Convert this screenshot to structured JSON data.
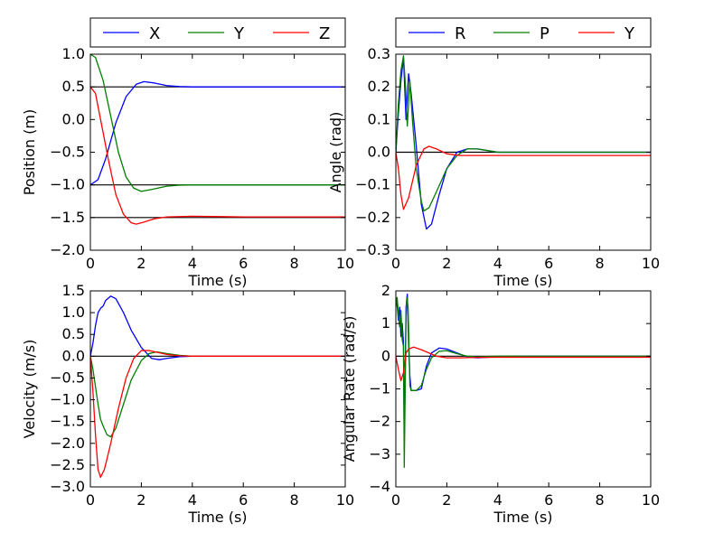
{
  "chart_data": [
    {
      "type": "line",
      "title": "",
      "xlabel": "Time (s)",
      "ylabel": "Position (m)",
      "xlim": [
        0,
        10
      ],
      "ylim": [
        -2.0,
        1.0
      ],
      "x_ticks": [
        "0",
        "2",
        "4",
        "6",
        "8",
        "10"
      ],
      "y_ticks": [
        "1.0",
        "0.5",
        "0.0",
        "−0.5",
        "−1.0",
        "−1.5",
        "−2.0"
      ],
      "reference_lines": [
        0.5,
        -1.0,
        -1.5
      ],
      "legend": {
        "placement": "above",
        "entries": [
          "X",
          "Y",
          "Z"
        ]
      },
      "series": [
        {
          "name": "X",
          "color": "#0000ff",
          "points": [
            [
              0,
              -1.0
            ],
            [
              0.3,
              -0.92
            ],
            [
              0.6,
              -0.6
            ],
            [
              1.0,
              -0.05
            ],
            [
              1.4,
              0.35
            ],
            [
              1.8,
              0.54
            ],
            [
              2.1,
              0.58
            ],
            [
              2.5,
              0.56
            ],
            [
              3.0,
              0.52
            ],
            [
              3.5,
              0.505
            ],
            [
              4.0,
              0.5
            ],
            [
              10,
              0.5
            ]
          ]
        },
        {
          "name": "Y",
          "color": "#007f00",
          "points": [
            [
              0,
              1.0
            ],
            [
              0.2,
              0.95
            ],
            [
              0.5,
              0.6
            ],
            [
              0.8,
              0.05
            ],
            [
              1.1,
              -0.5
            ],
            [
              1.4,
              -0.88
            ],
            [
              1.7,
              -1.05
            ],
            [
              2.0,
              -1.1
            ],
            [
              2.4,
              -1.07
            ],
            [
              3.0,
              -1.02
            ],
            [
              3.5,
              -1.005
            ],
            [
              4.0,
              -1.0
            ],
            [
              10,
              -1.0
            ]
          ]
        },
        {
          "name": "Z",
          "color": "#ff0000",
          "points": [
            [
              0,
              0.5
            ],
            [
              0.2,
              0.4
            ],
            [
              0.4,
              0.0
            ],
            [
              0.7,
              -0.6
            ],
            [
              1.0,
              -1.15
            ],
            [
              1.3,
              -1.45
            ],
            [
              1.6,
              -1.58
            ],
            [
              1.8,
              -1.6
            ],
            [
              2.1,
              -1.57
            ],
            [
              2.5,
              -1.52
            ],
            [
              3.0,
              -1.49
            ],
            [
              4.0,
              -1.48
            ],
            [
              6.0,
              -1.49
            ],
            [
              10,
              -1.49
            ]
          ]
        }
      ]
    },
    {
      "type": "line",
      "title": "",
      "xlabel": "Time (s)",
      "ylabel": "Angle (rad)",
      "xlim": [
        0,
        10
      ],
      "ylim": [
        -0.3,
        0.3
      ],
      "x_ticks": [
        "0",
        "2",
        "4",
        "6",
        "8",
        "10"
      ],
      "y_ticks": [
        "0.3",
        "0.2",
        "0.1",
        "0.0",
        "−0.1",
        "−0.2",
        "−0.3"
      ],
      "reference_lines": [
        0.0
      ],
      "legend": {
        "placement": "above",
        "entries": [
          "R",
          "P",
          "Y"
        ]
      },
      "series": [
        {
          "name": "R",
          "color": "#0000ff",
          "points": [
            [
              0,
              0
            ],
            [
              0.1,
              0.12
            ],
            [
              0.2,
              0.22
            ],
            [
              0.3,
              0.29
            ],
            [
              0.4,
              0.1
            ],
            [
              0.5,
              0.24
            ],
            [
              0.6,
              0.18
            ],
            [
              0.8,
              0.02
            ],
            [
              1.0,
              -0.16
            ],
            [
              1.2,
              -0.235
            ],
            [
              1.4,
              -0.22
            ],
            [
              1.7,
              -0.13
            ],
            [
              2.0,
              -0.05
            ],
            [
              2.4,
              0.0
            ],
            [
              2.8,
              0.01
            ],
            [
              3.2,
              0.01
            ],
            [
              3.6,
              0.005
            ],
            [
              4.0,
              0.0
            ],
            [
              10,
              0.0
            ]
          ]
        },
        {
          "name": "P",
          "color": "#007f00",
          "points": [
            [
              0,
              0
            ],
            [
              0.1,
              0.15
            ],
            [
              0.2,
              0.25
            ],
            [
              0.3,
              0.295
            ],
            [
              0.38,
              0.2
            ],
            [
              0.45,
              0.08
            ],
            [
              0.55,
              0.22
            ],
            [
              0.65,
              0.1
            ],
            [
              0.8,
              -0.05
            ],
            [
              1.0,
              -0.15
            ],
            [
              1.1,
              -0.18
            ],
            [
              1.3,
              -0.17
            ],
            [
              1.6,
              -0.12
            ],
            [
              2.0,
              -0.05
            ],
            [
              2.4,
              -0.01
            ],
            [
              2.8,
              0.01
            ],
            [
              3.2,
              0.01
            ],
            [
              3.6,
              0.005
            ],
            [
              4.0,
              0.0
            ],
            [
              10,
              0.0
            ]
          ]
        },
        {
          "name": "Y",
          "color": "#ff0000",
          "points": [
            [
              0,
              0
            ],
            [
              0.1,
              -0.05
            ],
            [
              0.2,
              -0.13
            ],
            [
              0.3,
              -0.175
            ],
            [
              0.5,
              -0.14
            ],
            [
              0.8,
              -0.04
            ],
            [
              1.1,
              0.01
            ],
            [
              1.3,
              0.018
            ],
            [
              1.6,
              0.01
            ],
            [
              2.0,
              -0.005
            ],
            [
              2.5,
              -0.01
            ],
            [
              10,
              -0.01
            ]
          ]
        }
      ]
    },
    {
      "type": "line",
      "title": "",
      "xlabel": "Time (s)",
      "ylabel": "Velocity (m/s)",
      "xlim": [
        0,
        10
      ],
      "ylim": [
        -3.0,
        1.5
      ],
      "x_ticks": [
        "0",
        "2",
        "4",
        "6",
        "8",
        "10"
      ],
      "y_ticks": [
        "1.5",
        "1.0",
        "0.5",
        "0.0",
        "−0.5",
        "−1.0",
        "−1.5",
        "−2.0",
        "−2.5",
        "−3.0"
      ],
      "reference_lines": [
        0.0
      ],
      "series": [
        {
          "name": "X",
          "color": "#0000ff",
          "points": [
            [
              0,
              0
            ],
            [
              0.1,
              0.3
            ],
            [
              0.2,
              0.7
            ],
            [
              0.3,
              1.0
            ],
            [
              0.4,
              1.1
            ],
            [
              0.5,
              1.15
            ],
            [
              0.6,
              1.28
            ],
            [
              0.8,
              1.38
            ],
            [
              1.0,
              1.32
            ],
            [
              1.3,
              1.0
            ],
            [
              1.6,
              0.6
            ],
            [
              2.0,
              0.2
            ],
            [
              2.4,
              -0.05
            ],
            [
              2.7,
              -0.08
            ],
            [
              3.0,
              -0.05
            ],
            [
              3.5,
              -0.01
            ],
            [
              4.0,
              0.0
            ],
            [
              10,
              0.0
            ]
          ]
        },
        {
          "name": "Y",
          "color": "#007f00",
          "points": [
            [
              0,
              0
            ],
            [
              0.1,
              -0.3
            ],
            [
              0.2,
              -0.7
            ],
            [
              0.3,
              -1.1
            ],
            [
              0.4,
              -1.45
            ],
            [
              0.5,
              -1.6
            ],
            [
              0.65,
              -1.8
            ],
            [
              0.8,
              -1.85
            ],
            [
              1.0,
              -1.65
            ],
            [
              1.3,
              -1.1
            ],
            [
              1.6,
              -0.55
            ],
            [
              2.0,
              -0.1
            ],
            [
              2.3,
              0.06
            ],
            [
              2.6,
              0.1
            ],
            [
              3.0,
              0.06
            ],
            [
              3.5,
              0.02
            ],
            [
              4.0,
              0.0
            ],
            [
              10,
              0.0
            ]
          ]
        },
        {
          "name": "Z",
          "color": "#ff0000",
          "points": [
            [
              0,
              0
            ],
            [
              0.1,
              -0.8
            ],
            [
              0.2,
              -1.8
            ],
            [
              0.3,
              -2.6
            ],
            [
              0.4,
              -2.78
            ],
            [
              0.55,
              -2.6
            ],
            [
              0.8,
              -2.0
            ],
            [
              1.1,
              -1.2
            ],
            [
              1.4,
              -0.5
            ],
            [
              1.7,
              -0.05
            ],
            [
              2.0,
              0.13
            ],
            [
              2.3,
              0.13
            ],
            [
              2.7,
              0.08
            ],
            [
              3.0,
              0.04
            ],
            [
              3.5,
              0.01
            ],
            [
              4.0,
              0.0
            ],
            [
              10,
              0.0
            ]
          ]
        }
      ]
    },
    {
      "type": "line",
      "title": "",
      "xlabel": "Time (s)",
      "ylabel": "Angular Rate (rad/s)",
      "xlim": [
        0,
        10
      ],
      "ylim": [
        -4,
        2
      ],
      "x_ticks": [
        "0",
        "2",
        "4",
        "6",
        "8",
        "10"
      ],
      "y_ticks": [
        "2",
        "1",
        "0",
        "−1",
        "−2",
        "−3",
        "−4"
      ],
      "reference_lines": [
        0.0
      ],
      "series": [
        {
          "name": "R",
          "color": "#0000ff",
          "points": [
            [
              0,
              1.7
            ],
            [
              0.05,
              1.6
            ],
            [
              0.1,
              1.1
            ],
            [
              0.15,
              1.5
            ],
            [
              0.2,
              0.6
            ],
            [
              0.25,
              1.0
            ],
            [
              0.3,
              0.4
            ],
            [
              0.33,
              -2.6
            ],
            [
              0.36,
              -1.0
            ],
            [
              0.4,
              1.5
            ],
            [
              0.45,
              1.9
            ],
            [
              0.5,
              0.4
            ],
            [
              0.55,
              -0.6
            ],
            [
              0.6,
              -1.05
            ],
            [
              0.8,
              -1.05
            ],
            [
              1.0,
              -1.0
            ],
            [
              1.2,
              -0.3
            ],
            [
              1.4,
              0.1
            ],
            [
              1.7,
              0.25
            ],
            [
              2.0,
              0.22
            ],
            [
              2.4,
              0.1
            ],
            [
              2.8,
              -0.02
            ],
            [
              3.2,
              -0.05
            ],
            [
              3.6,
              -0.03
            ],
            [
              4.0,
              -0.01
            ],
            [
              5.0,
              0.0
            ],
            [
              10,
              0.0
            ]
          ]
        },
        {
          "name": "P",
          "color": "#007f00",
          "points": [
            [
              0,
              1.5
            ],
            [
              0.05,
              1.8
            ],
            [
              0.1,
              1.3
            ],
            [
              0.15,
              0.9
            ],
            [
              0.2,
              1.4
            ],
            [
              0.25,
              0.5
            ],
            [
              0.3,
              0.3
            ],
            [
              0.33,
              -3.4
            ],
            [
              0.36,
              -1.5
            ],
            [
              0.4,
              1.2
            ],
            [
              0.43,
              1.8
            ],
            [
              0.48,
              1.5
            ],
            [
              0.52,
              0.2
            ],
            [
              0.55,
              -0.9
            ],
            [
              0.6,
              -1.05
            ],
            [
              0.8,
              -1.05
            ],
            [
              1.0,
              -0.9
            ],
            [
              1.2,
              -0.4
            ],
            [
              1.4,
              -0.05
            ],
            [
              1.7,
              0.15
            ],
            [
              2.0,
              0.17
            ],
            [
              2.4,
              0.08
            ],
            [
              2.8,
              0.0
            ],
            [
              3.2,
              -0.02
            ],
            [
              4.0,
              0.0
            ],
            [
              10,
              0.0
            ]
          ]
        },
        {
          "name": "Y",
          "color": "#ff0000",
          "points": [
            [
              0,
              0
            ],
            [
              0.1,
              -0.4
            ],
            [
              0.2,
              -0.75
            ],
            [
              0.3,
              -0.5
            ],
            [
              0.4,
              0.1
            ],
            [
              0.5,
              0.22
            ],
            [
              0.7,
              0.28
            ],
            [
              1.0,
              0.2
            ],
            [
              1.3,
              0.1
            ],
            [
              1.6,
              0.0
            ],
            [
              2.0,
              -0.05
            ],
            [
              2.5,
              -0.05
            ],
            [
              3.0,
              -0.04
            ],
            [
              4.0,
              -0.03
            ],
            [
              10,
              -0.03
            ]
          ]
        }
      ]
    }
  ]
}
